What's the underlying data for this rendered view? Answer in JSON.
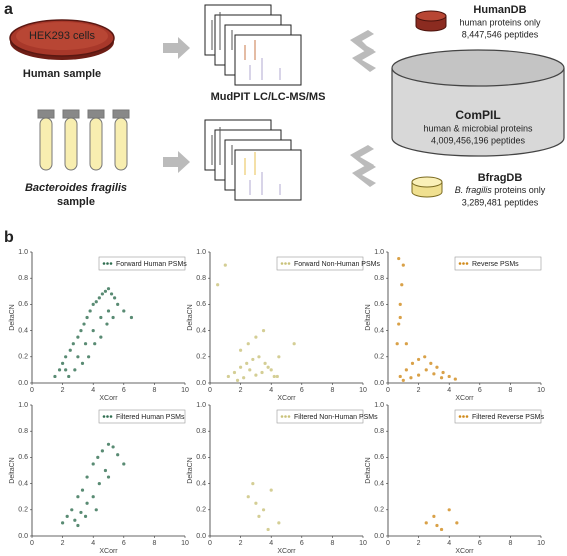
{
  "panel_a": {
    "label": "a",
    "dish_text": "HEK293 cells",
    "human_sample": "Human sample",
    "bacteria_name": "Bacteroides fragilis",
    "bacteria_sample": "sample",
    "method": "MudPIT LC/LC-MS/MS",
    "humandb": {
      "title": "HumanDB",
      "line1": "human proteins only",
      "line2": "8,447,546 peptides"
    },
    "compil": {
      "title": "ComPIL",
      "line1": "human & microbial proteins",
      "line2": "4,009,456,196 peptides"
    },
    "bfragdb": {
      "title": "BfragDB",
      "line1_italic": "B. fragilis",
      "line1_rest": " proteins only",
      "line2": "3,289,481 peptides"
    }
  },
  "panel_b": {
    "label": "b"
  },
  "chart_data": [
    {
      "type": "scatter",
      "x_label": "XCorr",
      "y_label": "DeltaCN",
      "xlim": [
        0,
        10
      ],
      "ylim": [
        0,
        1
      ],
      "xticks": [
        0,
        2,
        4,
        6,
        8,
        10
      ],
      "yticks": [
        {
          "value": 0,
          "label": "0.0"
        },
        {
          "value": 0.2,
          "label": "0.2"
        },
        {
          "value": 0.4,
          "label": "0.4"
        },
        {
          "value": 0.6,
          "label": "0.6"
        },
        {
          "value": 0.8,
          "label": "0.8"
        },
        {
          "value": 1,
          "label": "1.0"
        }
      ],
      "series": [
        {
          "name": "Forward Human PSMs",
          "color": "#2f6e50",
          "x": [
            1.5,
            1.8,
            2.0,
            2.2,
            2.5,
            2.7,
            3.0,
            3.2,
            3.4,
            3.6,
            3.8,
            4.0,
            4.2,
            4.4,
            4.6,
            4.8,
            5.0,
            5.2,
            5.4,
            5.6,
            2.4,
            2.8,
            3.3,
            3.7,
            4.1,
            4.5,
            4.9,
            5.3,
            3.0,
            3.5,
            4.0,
            4.5,
            5.0,
            2.2,
            6.0,
            6.5
          ],
          "values": [
            0.05,
            0.1,
            0.15,
            0.2,
            0.25,
            0.3,
            0.35,
            0.4,
            0.45,
            0.5,
            0.55,
            0.6,
            0.62,
            0.65,
            0.68,
            0.7,
            0.72,
            0.68,
            0.65,
            0.6,
            0.05,
            0.1,
            0.15,
            0.2,
            0.3,
            0.35,
            0.45,
            0.5,
            0.2,
            0.3,
            0.4,
            0.5,
            0.55,
            0.1,
            0.55,
            0.5
          ]
        }
      ]
    },
    {
      "type": "scatter",
      "x_label": "XCorr",
      "y_label": "DeltaCN",
      "xlim": [
        0,
        10
      ],
      "ylim": [
        0,
        1
      ],
      "xticks": [
        0,
        2,
        4,
        6,
        8,
        10
      ],
      "yticks": [
        {
          "value": 0,
          "label": "0.0"
        },
        {
          "value": 0.2,
          "label": "0.2"
        },
        {
          "value": 0.4,
          "label": "0.4"
        },
        {
          "value": 0.6,
          "label": "0.6"
        },
        {
          "value": 0.8,
          "label": "0.8"
        },
        {
          "value": 1,
          "label": "1.0"
        }
      ],
      "series": [
        {
          "name": "Forward Non-Human PSMs",
          "color": "#c9c27a",
          "x": [
            1.2,
            1.6,
            2.0,
            2.4,
            2.8,
            3.2,
            3.6,
            4.0,
            4.4,
            1.8,
            2.2,
            2.6,
            3.0,
            3.4,
            3.8,
            4.2,
            2.5,
            3.0,
            0.5,
            3.5,
            5.5,
            2.0,
            4.5,
            1.0
          ],
          "values": [
            0.05,
            0.08,
            0.12,
            0.15,
            0.18,
            0.2,
            0.15,
            0.1,
            0.05,
            0.02,
            0.04,
            0.1,
            0.06,
            0.08,
            0.12,
            0.05,
            0.3,
            0.35,
            0.75,
            0.4,
            0.3,
            0.25,
            0.2,
            0.9
          ]
        }
      ]
    },
    {
      "type": "scatter",
      "x_label": "XCorr",
      "y_label": "DeltaCN",
      "xlim": [
        0,
        10
      ],
      "ylim": [
        0,
        1
      ],
      "xticks": [
        0,
        2,
        4,
        6,
        8,
        10
      ],
      "yticks": [
        {
          "value": 0,
          "label": "0.0"
        },
        {
          "value": 0.2,
          "label": "0.2"
        },
        {
          "value": 0.4,
          "label": "0.4"
        },
        {
          "value": 0.6,
          "label": "0.6"
        },
        {
          "value": 0.8,
          "label": "0.8"
        },
        {
          "value": 1,
          "label": "1.0"
        }
      ],
      "series": [
        {
          "name": "Reverse PSMs",
          "color": "#d08a1a",
          "x": [
            0.8,
            1.2,
            1.6,
            2.0,
            2.4,
            2.8,
            3.2,
            3.6,
            4.0,
            4.4,
            1.0,
            1.5,
            2.0,
            2.5,
            3.0,
            3.5,
            0.6,
            0.7,
            0.8,
            0.9,
            1.0,
            0.8,
            1.2,
            0.7
          ],
          "values": [
            0.05,
            0.1,
            0.15,
            0.18,
            0.2,
            0.15,
            0.12,
            0.08,
            0.05,
            0.03,
            0.02,
            0.04,
            0.06,
            0.1,
            0.07,
            0.04,
            0.3,
            0.45,
            0.6,
            0.75,
            0.9,
            0.5,
            0.3,
            0.95
          ]
        }
      ]
    },
    {
      "type": "scatter",
      "x_label": "XCorr",
      "y_label": "DeltaCN",
      "xlim": [
        0,
        10
      ],
      "ylim": [
        0,
        1
      ],
      "xticks": [
        0,
        2,
        4,
        6,
        8,
        10
      ],
      "yticks": [
        {
          "value": 0,
          "label": "0.0"
        },
        {
          "value": 0.2,
          "label": "0.2"
        },
        {
          "value": 0.4,
          "label": "0.4"
        },
        {
          "value": 0.6,
          "label": "0.6"
        },
        {
          "value": 0.8,
          "label": "0.8"
        },
        {
          "value": 1,
          "label": "1.0"
        }
      ],
      "series": [
        {
          "name": "Filtered Human PSMs",
          "color": "#2f6e50",
          "x": [
            2.0,
            2.3,
            2.6,
            3.0,
            3.3,
            3.6,
            4.0,
            4.3,
            4.6,
            5.0,
            5.3,
            5.6,
            2.8,
            3.2,
            3.6,
            4.0,
            4.4,
            4.8,
            3.0,
            3.5,
            4.2,
            5.0,
            6.0
          ],
          "values": [
            0.1,
            0.15,
            0.2,
            0.3,
            0.35,
            0.45,
            0.55,
            0.6,
            0.65,
            0.7,
            0.68,
            0.62,
            0.12,
            0.18,
            0.25,
            0.3,
            0.4,
            0.5,
            0.08,
            0.15,
            0.2,
            0.45,
            0.55
          ]
        }
      ]
    },
    {
      "type": "scatter",
      "x_label": "XCorr",
      "y_label": "DeltaCN",
      "xlim": [
        0,
        10
      ],
      "ylim": [
        0,
        1
      ],
      "xticks": [
        0,
        2,
        4,
        6,
        8,
        10
      ],
      "yticks": [
        {
          "value": 0,
          "label": "0.0"
        },
        {
          "value": 0.2,
          "label": "0.2"
        },
        {
          "value": 0.4,
          "label": "0.4"
        },
        {
          "value": 0.6,
          "label": "0.6"
        },
        {
          "value": 0.8,
          "label": "0.8"
        },
        {
          "value": 1,
          "label": "1.0"
        }
      ],
      "series": [
        {
          "name": "Filtered Non-Human PSMs",
          "color": "#c9c27a",
          "x": [
            2.5,
            3.0,
            3.5,
            4.0,
            3.2,
            2.8,
            4.5,
            3.8
          ],
          "values": [
            0.3,
            0.25,
            0.2,
            0.35,
            0.15,
            0.4,
            0.1,
            0.05
          ]
        }
      ]
    },
    {
      "type": "scatter",
      "x_label": "XCorr",
      "y_label": "DeltaCN",
      "xlim": [
        0,
        10
      ],
      "ylim": [
        0,
        1
      ],
      "xticks": [
        0,
        2,
        4,
        6,
        8,
        10
      ],
      "yticks": [
        {
          "value": 0,
          "label": "0.0"
        },
        {
          "value": 0.2,
          "label": "0.2"
        },
        {
          "value": 0.4,
          "label": "0.4"
        },
        {
          "value": 0.6,
          "label": "0.6"
        },
        {
          "value": 0.8,
          "label": "0.8"
        },
        {
          "value": 1,
          "label": "1.0"
        }
      ],
      "series": [
        {
          "name": "Filtered Reverse PSMs",
          "color": "#d08a1a",
          "x": [
            2.5,
            3.0,
            3.5,
            4.0,
            4.5,
            3.2
          ],
          "values": [
            0.1,
            0.15,
            0.05,
            0.2,
            0.1,
            0.08
          ]
        }
      ]
    }
  ]
}
